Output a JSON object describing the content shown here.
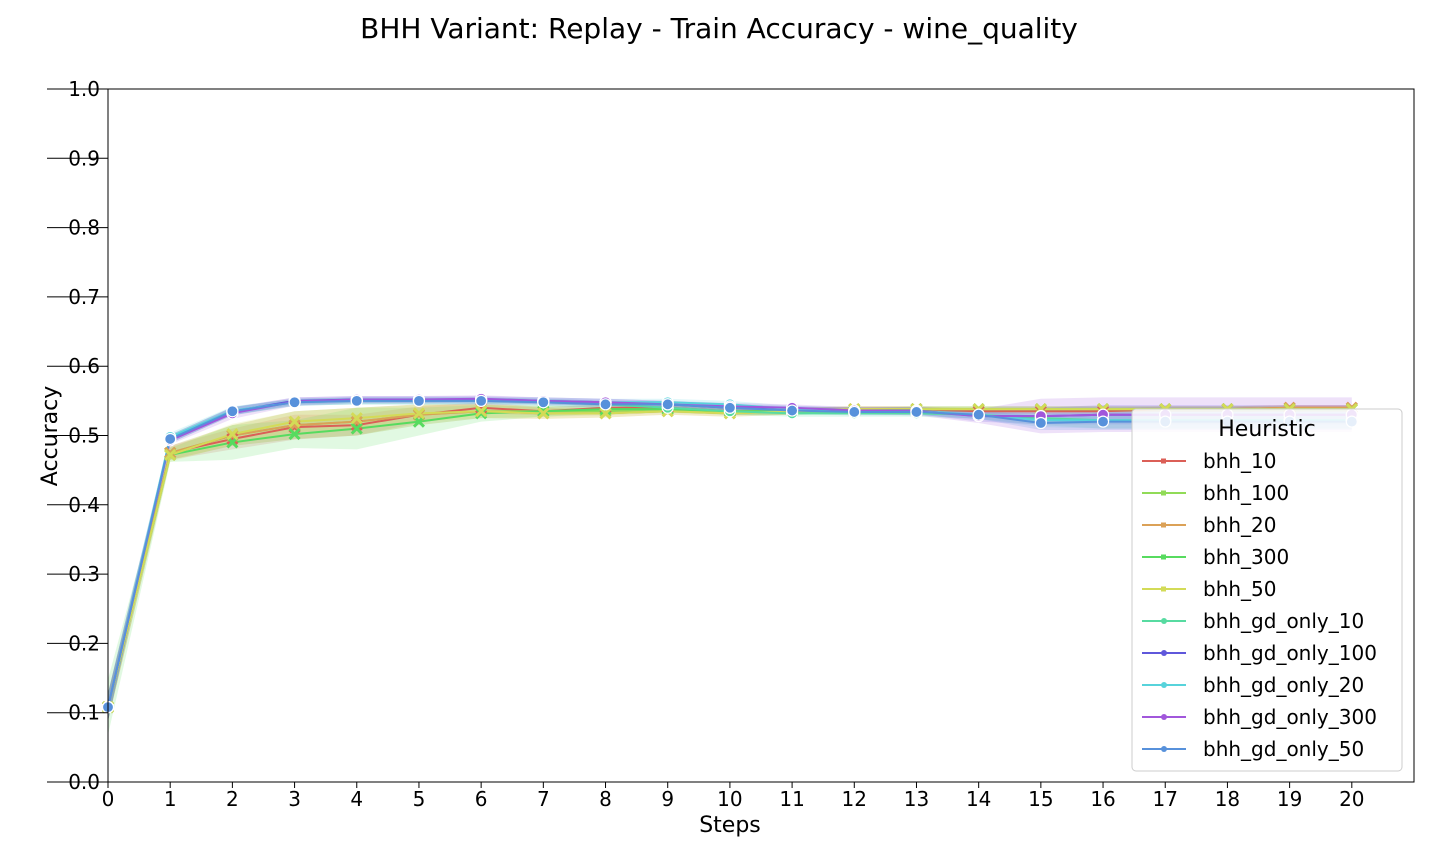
{
  "chart_data": {
    "type": "line",
    "title": "BHH Variant: Replay - Train Accuracy - wine_quality",
    "xlabel": "Steps",
    "ylabel": "Accuracy",
    "xlim": [
      0,
      21
    ],
    "ylim": [
      0.0,
      1.0
    ],
    "x": [
      0,
      1,
      2,
      3,
      4,
      5,
      6,
      7,
      8,
      9,
      10,
      11,
      12,
      13,
      14,
      15,
      16,
      17,
      18,
      19,
      20
    ],
    "yticks": [
      "0.0",
      "0.1",
      "0.2",
      "0.3",
      "0.4",
      "0.5",
      "0.6",
      "0.7",
      "0.8",
      "0.9",
      "1.0"
    ],
    "xticks": [
      "0",
      "1",
      "2",
      "3",
      "4",
      "5",
      "6",
      "7",
      "8",
      "9",
      "10",
      "11",
      "12",
      "13",
      "14",
      "15",
      "16",
      "17",
      "18",
      "19",
      "20"
    ],
    "grid": false,
    "legend": {
      "title": "Heuristic",
      "placement": "lower-right"
    },
    "series": [
      {
        "name": "bhh_10",
        "color": "#db5f57",
        "marker": "x",
        "values": [
          0.108,
          0.475,
          0.495,
          0.512,
          0.515,
          0.53,
          0.54,
          0.535,
          0.54,
          0.54,
          0.535,
          0.535,
          0.538,
          0.538,
          0.535,
          0.535,
          0.535,
          0.538,
          0.538,
          0.54,
          0.54
        ],
        "band": [
          0.02,
          0.01,
          0.015,
          0.018,
          0.015,
          0.012,
          0.008,
          0.006,
          0.005,
          0.005,
          0.005,
          0.005,
          0.004,
          0.004,
          0.004,
          0.004,
          0.004,
          0.004,
          0.004,
          0.004,
          0.004
        ]
      },
      {
        "name": "bhh_100",
        "color": "#91db57",
        "marker": "x",
        "values": [
          0.108,
          0.475,
          0.5,
          0.515,
          0.52,
          0.53,
          0.535,
          0.535,
          0.535,
          0.538,
          0.535,
          0.535,
          0.538,
          0.538,
          0.538,
          0.538,
          0.538,
          0.538,
          0.538,
          0.538,
          0.538
        ],
        "band": [
          0.02,
          0.01,
          0.015,
          0.02,
          0.02,
          0.015,
          0.01,
          0.008,
          0.006,
          0.005,
          0.005,
          0.005,
          0.004,
          0.004,
          0.004,
          0.004,
          0.004,
          0.004,
          0.004,
          0.004,
          0.004
        ]
      },
      {
        "name": "bhh_20",
        "color": "#dba157",
        "marker": "x",
        "values": [
          0.108,
          0.475,
          0.5,
          0.515,
          0.52,
          0.53,
          0.535,
          0.532,
          0.532,
          0.535,
          0.532,
          0.535,
          0.538,
          0.538,
          0.538,
          0.538,
          0.538,
          0.538,
          0.538,
          0.54,
          0.54
        ],
        "band": [
          0.02,
          0.01,
          0.015,
          0.02,
          0.02,
          0.015,
          0.01,
          0.008,
          0.006,
          0.005,
          0.005,
          0.005,
          0.004,
          0.004,
          0.004,
          0.004,
          0.004,
          0.004,
          0.004,
          0.004,
          0.004
        ]
      },
      {
        "name": "bhh_300",
        "color": "#57db5f",
        "marker": "x",
        "values": [
          0.108,
          0.472,
          0.49,
          0.502,
          0.51,
          0.52,
          0.532,
          0.535,
          0.538,
          0.538,
          0.535,
          0.535,
          0.535,
          0.538,
          0.538,
          0.538,
          0.538,
          0.538,
          0.538,
          0.538,
          0.538
        ],
        "band": [
          0.04,
          0.01,
          0.025,
          0.02,
          0.03,
          0.02,
          0.012,
          0.008,
          0.006,
          0.005,
          0.005,
          0.005,
          0.004,
          0.004,
          0.004,
          0.004,
          0.004,
          0.004,
          0.004,
          0.004,
          0.004
        ]
      },
      {
        "name": "bhh_50",
        "color": "#d3db57",
        "marker": "x",
        "values": [
          0.108,
          0.472,
          0.502,
          0.52,
          0.525,
          0.532,
          0.535,
          0.532,
          0.532,
          0.535,
          0.532,
          0.535,
          0.538,
          0.538,
          0.538,
          0.538,
          0.538,
          0.538,
          0.538,
          0.538,
          0.538
        ],
        "band": [
          0.02,
          0.01,
          0.015,
          0.015,
          0.015,
          0.012,
          0.01,
          0.008,
          0.006,
          0.005,
          0.005,
          0.005,
          0.004,
          0.004,
          0.004,
          0.004,
          0.004,
          0.004,
          0.004,
          0.004,
          0.004
        ]
      },
      {
        "name": "bhh_gd_only_10",
        "color": "#57dba1",
        "marker": "o",
        "values": [
          0.108,
          0.495,
          0.535,
          0.548,
          0.55,
          0.55,
          0.55,
          0.548,
          0.545,
          0.54,
          0.535,
          0.532,
          0.532,
          0.532,
          0.53,
          0.525,
          0.522,
          0.522,
          0.522,
          0.522,
          0.522
        ],
        "band": [
          0.02,
          0.006,
          0.006,
          0.005,
          0.005,
          0.005,
          0.005,
          0.005,
          0.005,
          0.005,
          0.005,
          0.005,
          0.005,
          0.005,
          0.006,
          0.01,
          0.012,
          0.012,
          0.012,
          0.012,
          0.012
        ]
      },
      {
        "name": "bhh_gd_only_100",
        "color": "#5f57db",
        "marker": "o",
        "values": [
          0.108,
          0.495,
          0.535,
          0.55,
          0.552,
          0.552,
          0.552,
          0.55,
          0.548,
          0.545,
          0.54,
          0.538,
          0.536,
          0.536,
          0.528,
          0.528,
          0.53,
          0.53,
          0.53,
          0.53,
          0.53
        ],
        "band": [
          0.02,
          0.006,
          0.006,
          0.005,
          0.005,
          0.005,
          0.005,
          0.005,
          0.005,
          0.005,
          0.005,
          0.005,
          0.005,
          0.005,
          0.008,
          0.012,
          0.014,
          0.014,
          0.014,
          0.014,
          0.014
        ]
      },
      {
        "name": "bhh_gd_only_20",
        "color": "#57d3db",
        "marker": "o",
        "values": [
          0.108,
          0.498,
          0.536,
          0.548,
          0.55,
          0.55,
          0.55,
          0.55,
          0.548,
          0.548,
          0.545,
          0.538,
          0.535,
          0.535,
          0.53,
          0.522,
          0.522,
          0.522,
          0.522,
          0.522,
          0.522
        ],
        "band": [
          0.02,
          0.006,
          0.006,
          0.005,
          0.005,
          0.005,
          0.005,
          0.005,
          0.005,
          0.005,
          0.005,
          0.005,
          0.005,
          0.005,
          0.006,
          0.01,
          0.012,
          0.012,
          0.012,
          0.012,
          0.012
        ]
      },
      {
        "name": "bhh_gd_only_300",
        "color": "#a157db",
        "marker": "o",
        "values": [
          0.108,
          0.493,
          0.532,
          0.549,
          0.552,
          0.552,
          0.553,
          0.55,
          0.548,
          0.545,
          0.542,
          0.54,
          0.536,
          0.535,
          0.528,
          0.528,
          0.53,
          0.53,
          0.53,
          0.53,
          0.53
        ],
        "band": [
          0.02,
          0.006,
          0.008,
          0.006,
          0.005,
          0.005,
          0.005,
          0.005,
          0.005,
          0.005,
          0.005,
          0.005,
          0.005,
          0.006,
          0.01,
          0.025,
          0.025,
          0.025,
          0.025,
          0.025,
          0.025
        ]
      },
      {
        "name": "bhh_gd_only_50",
        "color": "#5791db",
        "marker": "o",
        "values": [
          0.108,
          0.495,
          0.535,
          0.548,
          0.55,
          0.55,
          0.55,
          0.548,
          0.545,
          0.545,
          0.54,
          0.536,
          0.534,
          0.534,
          0.53,
          0.518,
          0.52,
          0.52,
          0.52,
          0.52,
          0.52
        ],
        "band": [
          0.02,
          0.006,
          0.006,
          0.005,
          0.005,
          0.005,
          0.005,
          0.005,
          0.005,
          0.005,
          0.005,
          0.005,
          0.005,
          0.005,
          0.006,
          0.01,
          0.012,
          0.012,
          0.012,
          0.012,
          0.012
        ]
      }
    ]
  }
}
